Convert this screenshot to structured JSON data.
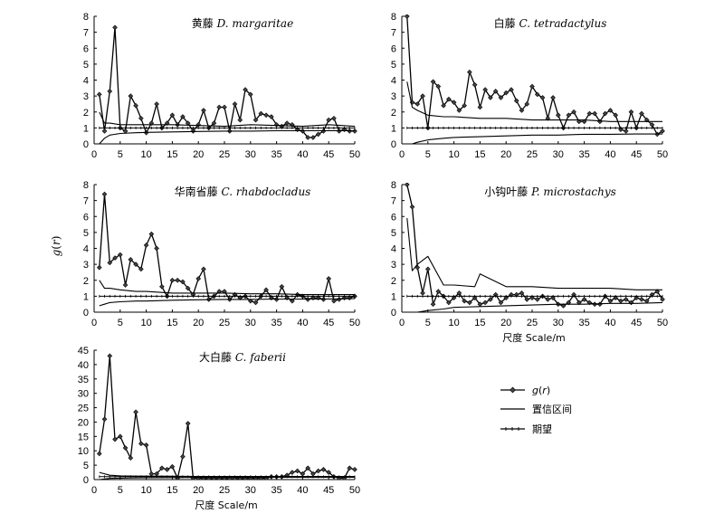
{
  "ylabel": "g(r)",
  "legend": {
    "placement": "right-bottom",
    "items": [
      {
        "key": "gr",
        "label": "g(r)",
        "marker": "diamond"
      },
      {
        "key": "ci",
        "label": "置信区间",
        "marker": "line"
      },
      {
        "key": "exp",
        "label": "期望",
        "marker": "tick-line"
      }
    ]
  },
  "chart_data": [
    {
      "type": "line",
      "title_cn": "黄藤",
      "title_sci": "D. margaritae",
      "xlabel": "",
      "xlim": [
        0,
        50
      ],
      "ylim": [
        0,
        8
      ],
      "xticks": [
        0,
        5,
        10,
        15,
        20,
        25,
        30,
        35,
        40,
        45,
        50
      ],
      "yticks": [
        0,
        1,
        2,
        3,
        4,
        5,
        6,
        7,
        8
      ],
      "grid": false,
      "series": [
        {
          "key": "gr",
          "x": [
            1,
            2,
            3,
            4,
            5,
            6,
            7,
            8,
            9,
            10,
            11,
            12,
            13,
            14,
            15,
            16,
            17,
            18,
            19,
            20,
            21,
            22,
            23,
            24,
            25,
            26,
            27,
            28,
            29,
            30,
            31,
            32,
            33,
            34,
            35,
            36,
            37,
            38,
            39,
            40,
            41,
            42,
            43,
            44,
            45,
            46,
            47,
            48,
            49,
            50
          ],
          "y": [
            3.1,
            0.8,
            3.3,
            7.3,
            1.0,
            0.8,
            3.0,
            2.4,
            1.6,
            0.7,
            1.3,
            2.5,
            1.0,
            1.3,
            1.8,
            1.2,
            1.7,
            1.3,
            0.8,
            1.2,
            2.1,
            1.0,
            1.3,
            2.3,
            2.3,
            0.8,
            2.5,
            1.5,
            3.4,
            3.1,
            1.5,
            1.9,
            1.8,
            1.7,
            1.2,
            1.1,
            1.3,
            1.2,
            0.9,
            0.8,
            0.4,
            0.4,
            0.6,
            0.8,
            1.5,
            1.6,
            0.8,
            0.9,
            0.8,
            0.8
          ]
        },
        {
          "key": "ci_upper",
          "x": [
            1,
            2,
            3,
            5,
            8,
            10,
            15,
            20,
            25,
            30,
            35,
            40,
            45,
            50
          ],
          "y": [
            2.0,
            1.3,
            1.3,
            1.2,
            1.2,
            1.2,
            1.2,
            1.15,
            1.1,
            1.2,
            1.15,
            1.1,
            1.2,
            1.1
          ]
        },
        {
          "key": "ci_lower",
          "x": [
            1,
            2,
            3,
            5,
            8,
            10,
            15,
            20,
            25,
            30,
            35,
            40,
            45,
            50
          ],
          "y": [
            0.0,
            0.35,
            0.55,
            0.65,
            0.7,
            0.72,
            0.75,
            0.78,
            0.8,
            0.8,
            0.82,
            0.82,
            0.83,
            0.83
          ]
        },
        {
          "key": "exp",
          "x": [
            1,
            50
          ],
          "y": [
            1,
            1
          ]
        }
      ]
    },
    {
      "type": "line",
      "title_cn": "白藤",
      "title_sci": "C. tetradactylus",
      "xlabel": "",
      "xlim": [
        0,
        50
      ],
      "ylim": [
        0,
        8
      ],
      "xticks": [
        0,
        5,
        10,
        15,
        20,
        25,
        30,
        35,
        40,
        45,
        50
      ],
      "yticks": [
        0,
        1,
        2,
        3,
        4,
        5,
        6,
        7,
        8
      ],
      "grid": false,
      "series": [
        {
          "key": "gr",
          "x": [
            1,
            2,
            3,
            4,
            5,
            6,
            7,
            8,
            9,
            10,
            11,
            12,
            13,
            14,
            15,
            16,
            17,
            18,
            19,
            20,
            21,
            22,
            23,
            24,
            25,
            26,
            27,
            28,
            29,
            30,
            31,
            32,
            33,
            34,
            35,
            36,
            37,
            38,
            39,
            40,
            41,
            42,
            43,
            44,
            45,
            46,
            47,
            48,
            49,
            50
          ],
          "y": [
            8.0,
            2.6,
            2.5,
            3.0,
            1.0,
            3.9,
            3.6,
            2.4,
            2.8,
            2.6,
            2.1,
            2.4,
            4.5,
            3.7,
            2.3,
            3.4,
            2.9,
            3.3,
            2.9,
            3.2,
            3.4,
            2.7,
            2.1,
            2.5,
            3.6,
            3.1,
            2.9,
            1.6,
            2.9,
            1.8,
            1.0,
            1.8,
            2.0,
            1.4,
            1.4,
            1.9,
            1.9,
            1.4,
            1.9,
            2.1,
            1.8,
            0.9,
            0.8,
            2.0,
            1.0,
            1.9,
            1.5,
            1.2,
            0.6,
            0.8
          ]
        },
        {
          "key": "ci_upper",
          "x": [
            1,
            2,
            3,
            5,
            8,
            10,
            15,
            20,
            25,
            30,
            35,
            40,
            45,
            50
          ],
          "y": [
            3.9,
            2.3,
            2.1,
            1.8,
            1.7,
            1.7,
            1.6,
            1.6,
            1.5,
            1.5,
            1.5,
            1.4,
            1.4,
            1.4
          ]
        },
        {
          "key": "ci_lower",
          "x": [
            1,
            2,
            3,
            5,
            8,
            10,
            15,
            20,
            25,
            30,
            35,
            40,
            45,
            50
          ],
          "y": [
            0.0,
            0.0,
            0.1,
            0.25,
            0.35,
            0.4,
            0.45,
            0.5,
            0.55,
            0.55,
            0.6,
            0.6,
            0.62,
            0.62
          ]
        },
        {
          "key": "exp",
          "x": [
            1,
            50
          ],
          "y": [
            1,
            1
          ]
        }
      ]
    },
    {
      "type": "line",
      "title_cn": "华南省藤",
      "title_sci": "C. rhabdocladus",
      "xlabel": "",
      "xlim": [
        0,
        50
      ],
      "ylim": [
        0,
        8
      ],
      "xticks": [
        0,
        5,
        10,
        15,
        20,
        25,
        30,
        35,
        40,
        45,
        50
      ],
      "yticks": [
        0,
        1,
        2,
        3,
        4,
        5,
        6,
        7,
        8
      ],
      "grid": false,
      "series": [
        {
          "key": "gr",
          "x": [
            1,
            2,
            3,
            4,
            5,
            6,
            7,
            8,
            9,
            10,
            11,
            12,
            13,
            14,
            15,
            16,
            17,
            18,
            19,
            20,
            21,
            22,
            23,
            24,
            25,
            26,
            27,
            28,
            29,
            30,
            31,
            32,
            33,
            34,
            35,
            36,
            37,
            38,
            39,
            40,
            41,
            42,
            43,
            44,
            45,
            46,
            47,
            48,
            49,
            50
          ],
          "y": [
            2.8,
            7.4,
            3.1,
            3.4,
            3.6,
            1.7,
            3.3,
            3.0,
            2.7,
            4.2,
            4.9,
            4.0,
            1.6,
            1.0,
            2.0,
            2.0,
            1.9,
            1.5,
            1.1,
            2.1,
            2.7,
            0.8,
            1.0,
            1.3,
            1.3,
            0.8,
            1.1,
            0.9,
            1.0,
            0.7,
            0.6,
            1.0,
            1.4,
            0.9,
            0.8,
            1.6,
            0.9,
            0.7,
            1.1,
            1.0,
            0.8,
            0.9,
            0.9,
            0.8,
            2.1,
            0.7,
            0.8,
            0.9,
            0.9,
            1.0
          ]
        },
        {
          "key": "ci_upper",
          "x": [
            1,
            2,
            3,
            5,
            8,
            10,
            15,
            20,
            25,
            30,
            35,
            40,
            45,
            50
          ],
          "y": [
            2.0,
            1.5,
            1.5,
            1.4,
            1.3,
            1.3,
            1.2,
            1.2,
            1.2,
            1.15,
            1.15,
            1.1,
            1.1,
            1.1
          ]
        },
        {
          "key": "ci_lower",
          "x": [
            1,
            2,
            3,
            5,
            8,
            10,
            15,
            20,
            25,
            30,
            35,
            40,
            45,
            50
          ],
          "y": [
            0.4,
            0.5,
            0.6,
            0.65,
            0.7,
            0.7,
            0.75,
            0.78,
            0.8,
            0.8,
            0.82,
            0.82,
            0.83,
            0.85
          ]
        },
        {
          "key": "exp",
          "x": [
            1,
            50
          ],
          "y": [
            1,
            1
          ]
        }
      ]
    },
    {
      "type": "line",
      "title_cn": "小钩叶藤",
      "title_sci": "P. microstachys",
      "xlabel": "尺度 Scale/m",
      "xlim": [
        0,
        50
      ],
      "ylim": [
        0,
        8
      ],
      "xticks": [
        0,
        5,
        10,
        15,
        20,
        25,
        30,
        35,
        40,
        45,
        50
      ],
      "yticks": [
        0,
        1,
        2,
        3,
        4,
        5,
        6,
        7,
        8
      ],
      "grid": false,
      "series": [
        {
          "key": "gr",
          "x": [
            1,
            2,
            3,
            4,
            5,
            6,
            7,
            8,
            9,
            10,
            11,
            12,
            13,
            14,
            15,
            16,
            17,
            18,
            19,
            20,
            21,
            22,
            23,
            24,
            25,
            26,
            27,
            28,
            29,
            30,
            31,
            32,
            33,
            34,
            35,
            36,
            37,
            38,
            39,
            40,
            41,
            42,
            43,
            44,
            45,
            46,
            47,
            48,
            49,
            50
          ],
          "y": [
            8.0,
            6.6,
            2.8,
            1.2,
            2.7,
            0.5,
            1.3,
            1.0,
            0.6,
            0.9,
            1.2,
            0.7,
            0.6,
            0.9,
            0.5,
            0.6,
            0.8,
            1.1,
            0.6,
            0.9,
            1.1,
            1.1,
            1.2,
            0.8,
            0.9,
            0.8,
            1.0,
            0.8,
            0.9,
            0.5,
            0.4,
            0.6,
            1.1,
            0.6,
            0.8,
            0.6,
            0.5,
            0.5,
            1.0,
            0.7,
            0.9,
            0.7,
            0.8,
            0.6,
            0.9,
            0.8,
            0.7,
            1.1,
            1.3,
            0.8
          ]
        },
        {
          "key": "ci_upper",
          "x": [
            1,
            2,
            3,
            5,
            8,
            10,
            14,
            15,
            20,
            25,
            30,
            35,
            40,
            45,
            50
          ],
          "y": [
            5.9,
            2.6,
            3.0,
            3.5,
            1.7,
            1.7,
            1.6,
            2.4,
            1.6,
            1.6,
            1.5,
            1.5,
            1.5,
            1.4,
            1.4
          ]
        },
        {
          "key": "ci_lower",
          "x": [
            1,
            2,
            3,
            5,
            8,
            10,
            15,
            20,
            25,
            30,
            35,
            40,
            45,
            50
          ],
          "y": [
            0.0,
            0.0,
            0.0,
            0.1,
            0.2,
            0.3,
            0.35,
            0.4,
            0.45,
            0.5,
            0.5,
            0.55,
            0.55,
            0.6
          ]
        },
        {
          "key": "exp",
          "x": [
            1,
            50
          ],
          "y": [
            1,
            1
          ]
        }
      ]
    },
    {
      "type": "line",
      "title_cn": "大白藤",
      "title_sci": "C. faberii",
      "xlabel": "尺度 Scale/m",
      "xlim": [
        0,
        50
      ],
      "ylim": [
        0,
        45
      ],
      "xticks": [
        0,
        5,
        10,
        15,
        20,
        25,
        30,
        35,
        40,
        45,
        50
      ],
      "yticks": [
        0,
        5,
        10,
        15,
        20,
        25,
        30,
        35,
        40,
        45
      ],
      "grid": false,
      "series": [
        {
          "key": "gr",
          "x": [
            1,
            2,
            3,
            4,
            5,
            6,
            7,
            8,
            9,
            10,
            11,
            12,
            13,
            14,
            15,
            16,
            17,
            18,
            19,
            20,
            21,
            22,
            23,
            24,
            25,
            26,
            27,
            28,
            29,
            30,
            31,
            32,
            33,
            34,
            35,
            36,
            37,
            38,
            39,
            40,
            41,
            42,
            43,
            44,
            45,
            46,
            47,
            48,
            49,
            50
          ],
          "y": [
            9.0,
            21.0,
            43.0,
            14.0,
            15.0,
            11.0,
            7.5,
            23.5,
            12.5,
            12.0,
            2.0,
            2.0,
            4.0,
            3.5,
            4.5,
            0.5,
            8.0,
            19.5,
            0.5,
            0.5,
            0.4,
            0.3,
            0.4,
            0.3,
            0.4,
            0.3,
            0.3,
            0.4,
            0.3,
            0.5,
            0.4,
            0.5,
            0.4,
            1.0,
            1.0,
            1.0,
            1.5,
            2.5,
            3.0,
            2.0,
            4.0,
            2.0,
            3.0,
            3.5,
            2.5,
            1.0,
            0.5,
            0.5,
            4.0,
            3.5
          ]
        },
        {
          "key": "ci_upper",
          "x": [
            1,
            3,
            5,
            8,
            10,
            15,
            20,
            25,
            30,
            35,
            40,
            45,
            50
          ],
          "y": [
            2.5,
            1.5,
            1.3,
            1.2,
            1.2,
            1.15,
            1.1,
            1.1,
            1.1,
            1.1,
            1.1,
            1.1,
            1.1
          ]
        },
        {
          "key": "ci_lower",
          "x": [
            1,
            3,
            5,
            8,
            10,
            15,
            20,
            25,
            30,
            35,
            40,
            45,
            50
          ],
          "y": [
            0.0,
            0.4,
            0.5,
            0.6,
            0.65,
            0.7,
            0.75,
            0.78,
            0.8,
            0.8,
            0.82,
            0.82,
            0.83
          ]
        },
        {
          "key": "exp",
          "x": [
            1,
            50
          ],
          "y": [
            1,
            1
          ]
        }
      ]
    }
  ]
}
